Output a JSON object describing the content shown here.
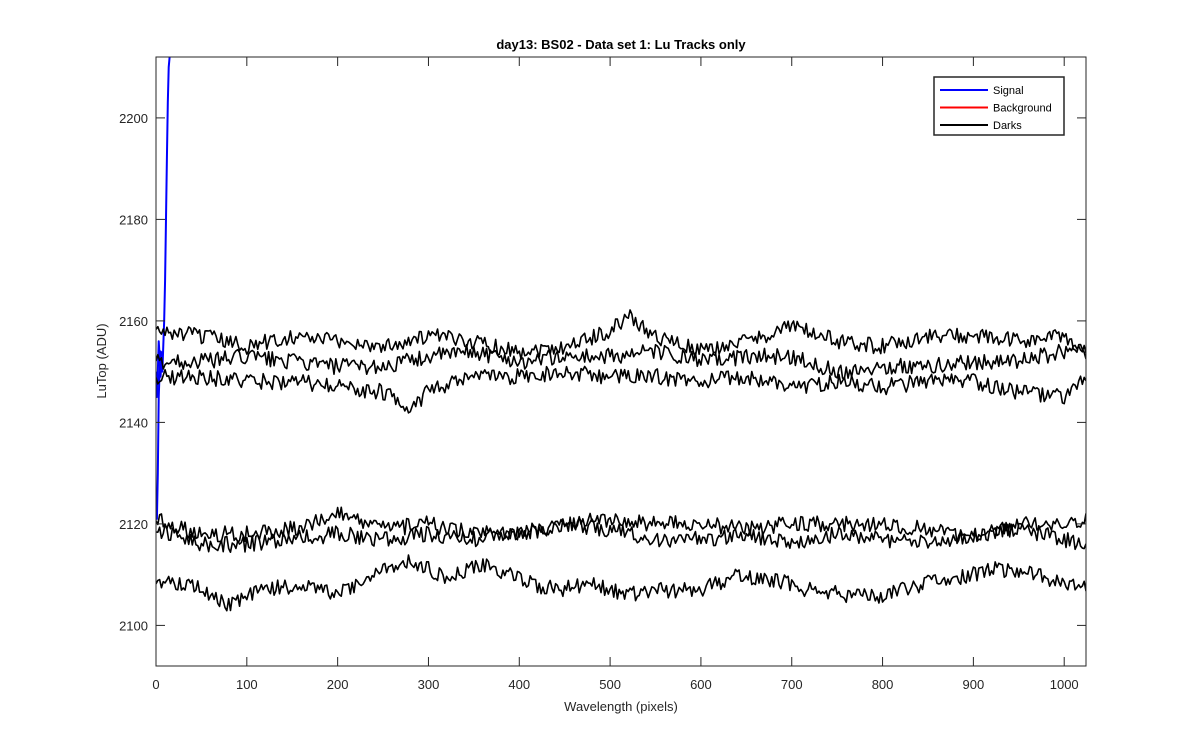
{
  "chart_data": {
    "type": "line",
    "title": "day13: BS02 - Data set 1: Lu Tracks only",
    "xlabel": "Wavelength (pixels)",
    "ylabel": "LuTop (ADU)",
    "xlim": [
      0,
      1024
    ],
    "ylim": [
      2092,
      2212
    ],
    "xticks": [
      0,
      100,
      200,
      300,
      400,
      500,
      600,
      700,
      800,
      900,
      1000
    ],
    "yticks": [
      2100,
      2120,
      2140,
      2160,
      2180,
      2200
    ],
    "grid": false,
    "legend_position": "top-right",
    "legend": [
      {
        "label": "Signal",
        "color": "#0000ff"
      },
      {
        "label": "Background",
        "color": "#ff0000"
      },
      {
        "label": "Darks",
        "color": "#000000"
      }
    ],
    "series": [
      {
        "name": "Signal",
        "color": "#0000ff",
        "x": [
          0,
          1,
          2,
          3,
          4,
          5,
          6,
          7,
          8,
          9,
          10,
          11,
          12,
          13,
          14,
          15
        ],
        "y": [
          2124,
          2121,
          2130,
          2145,
          2150,
          2154,
          2153,
          2150,
          2155,
          2160,
          2168,
          2180,
          2192,
          2203,
          2210,
          2212
        ]
      },
      {
        "name": "Signal",
        "color": "#0000ff",
        "x": [
          0,
          1,
          2,
          3,
          4,
          5,
          6,
          7
        ],
        "y": [
          2150,
          2145,
          2150,
          2156,
          2153,
          2149,
          2152,
          2154
        ]
      },
      {
        "name": "Darks",
        "color": "#000000",
        "x": [
          0,
          50,
          100,
          150,
          200,
          250,
          300,
          350,
          400,
          450,
          500,
          520,
          550,
          600,
          650,
          700,
          750,
          800,
          850,
          900,
          950,
          1000,
          1024
        ],
        "y": [
          2158,
          2157,
          2155,
          2157,
          2156,
          2155,
          2157,
          2156,
          2154,
          2155,
          2158,
          2161,
          2157,
          2154,
          2156,
          2159,
          2156,
          2155,
          2157,
          2157,
          2156,
          2157,
          2154
        ]
      },
      {
        "name": "Darks",
        "color": "#000000",
        "x": [
          0,
          50,
          100,
          150,
          200,
          250,
          300,
          350,
          400,
          450,
          500,
          550,
          600,
          650,
          700,
          750,
          800,
          850,
          900,
          950,
          1000,
          1024
        ],
        "y": [
          2152,
          2152,
          2153,
          2152,
          2151,
          2151,
          2153,
          2154,
          2152,
          2153,
          2153,
          2154,
          2152,
          2153,
          2153,
          2150,
          2151,
          2151,
          2152,
          2152,
          2154,
          2154
        ]
      },
      {
        "name": "Darks",
        "color": "#000000",
        "x": [
          0,
          50,
          100,
          150,
          200,
          250,
          280,
          300,
          350,
          400,
          450,
          500,
          550,
          600,
          650,
          700,
          750,
          800,
          850,
          900,
          950,
          1000,
          1024
        ],
        "y": [
          2149,
          2149,
          2148,
          2148,
          2147,
          2146,
          2143,
          2146,
          2149,
          2149,
          2150,
          2149,
          2149,
          2148,
          2149,
          2147,
          2148,
          2147,
          2148,
          2148,
          2146,
          2145,
          2149
        ]
      },
      {
        "name": "Darks",
        "color": "#000000",
        "x": [
          0,
          50,
          100,
          150,
          200,
          250,
          300,
          350,
          400,
          450,
          500,
          550,
          600,
          650,
          700,
          750,
          800,
          850,
          900,
          950,
          1000,
          1024
        ],
        "y": [
          2121,
          2118,
          2118,
          2119,
          2122,
          2119,
          2120,
          2118,
          2118,
          2120,
          2121,
          2120,
          2120,
          2119,
          2120,
          2120,
          2120,
          2119,
          2117,
          2120,
          2120,
          2121
        ]
      },
      {
        "name": "Darks",
        "color": "#000000",
        "x": [
          0,
          50,
          100,
          150,
          200,
          250,
          300,
          350,
          400,
          450,
          500,
          550,
          600,
          650,
          700,
          750,
          800,
          850,
          900,
          950,
          1000,
          1024
        ],
        "y": [
          2119,
          2116,
          2116,
          2117,
          2118,
          2117,
          2118,
          2117,
          2118,
          2120,
          2119,
          2117,
          2117,
          2118,
          2116,
          2118,
          2117,
          2116,
          2118,
          2119,
          2117,
          2115
        ]
      },
      {
        "name": "Darks",
        "color": "#000000",
        "x": [
          0,
          40,
          80,
          120,
          160,
          200,
          240,
          280,
          320,
          360,
          400,
          440,
          480,
          520,
          560,
          600,
          640,
          680,
          720,
          760,
          800,
          840,
          880,
          920,
          960,
          1000,
          1024
        ],
        "y": [
          2109,
          2108,
          2104,
          2107,
          2108,
          2106,
          2110,
          2113,
          2109,
          2112,
          2109,
          2107,
          2108,
          2106,
          2107,
          2107,
          2110,
          2109,
          2107,
          2106,
          2106,
          2108,
          2109,
          2111,
          2111,
          2108,
          2108
        ]
      }
    ]
  }
}
